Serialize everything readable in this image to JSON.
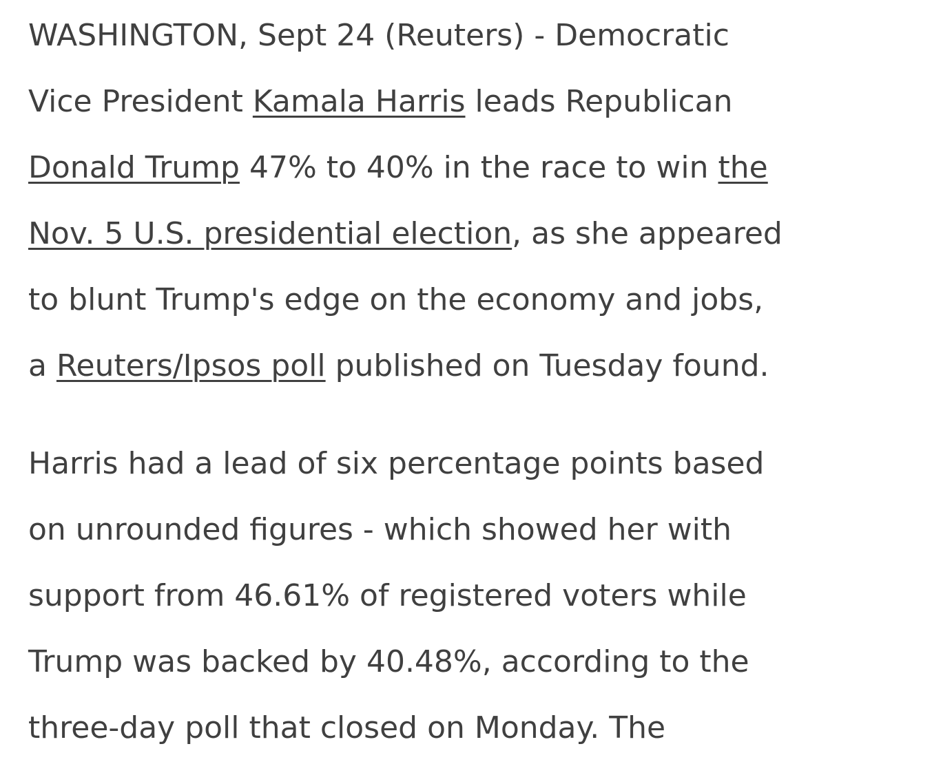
{
  "article": {
    "paragraphs": [
      {
        "lines": [
          [
            {
              "text": "WASHINGTON, Sept 24 (Reuters) - Democratic"
            }
          ],
          [
            {
              "text": "Vice President "
            },
            {
              "link": "Kamala Harris"
            },
            {
              "text": " leads Republican"
            }
          ],
          [
            {
              "link": "Donald Trump"
            },
            {
              "text": " 47% to 40% in the race to win "
            },
            {
              "link": "the"
            }
          ],
          [
            {
              "link": "Nov. 5 U.S. presidential election"
            },
            {
              "text": ", as she appeared"
            }
          ],
          [
            {
              "text": "to blunt Trump's edge on the economy and jobs,"
            }
          ],
          [
            {
              "text": "a "
            },
            {
              "link": "Reuters/Ipsos poll"
            },
            {
              "text": " published on Tuesday found."
            }
          ]
        ]
      },
      {
        "lines": [
          [
            {
              "text": "Harris had a lead of six percentage points based"
            }
          ],
          [
            {
              "text": "on unrounded figures - which showed her with"
            }
          ],
          [
            {
              "text": "support from 46.61% of registered voters while"
            }
          ],
          [
            {
              "text": "Trump was backed by 40.48%, according to the"
            }
          ],
          [
            {
              "text": "three-day poll that closed on Monday. The"
            }
          ]
        ]
      }
    ]
  }
}
